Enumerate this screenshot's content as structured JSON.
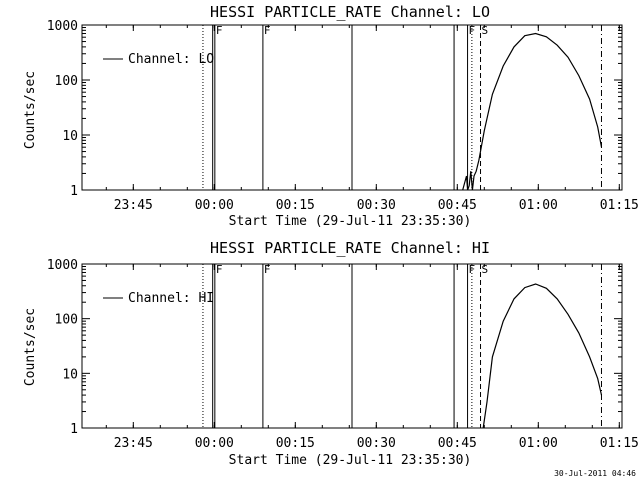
{
  "chart_data": [
    {
      "type": "line",
      "title": "HESSI PARTICLE_RATE Channel: LO",
      "xlabel": "Start Time (29-Jul-11 23:35:30)",
      "ylabel": "Counts/sec",
      "y_scale": "log",
      "ylim": [
        1,
        1000
      ],
      "x_unit": "minutes from 23:35:30",
      "xlim": [
        0,
        100
      ],
      "x_tick_values": [
        9.5,
        24.5,
        39.5,
        54.5,
        69.5,
        84.5,
        99.5
      ],
      "x_tick_labels": [
        "23:45",
        "00:00",
        "00:15",
        "00:30",
        "00:45",
        "01:00",
        "01:15"
      ],
      "y_tick_values": [
        1,
        10,
        100,
        1000
      ],
      "y_tick_labels": [
        "1",
        "10",
        "100",
        "1000"
      ],
      "legend": {
        "entries": [
          "Channel: LO"
        ],
        "placement": "top-left"
      },
      "series": [
        {
          "name": "Channel: LO",
          "x": [
            70.5,
            71.2,
            71.4,
            71.7,
            72.0,
            72.3,
            72.6,
            73.0,
            73.5,
            74.5,
            76.0,
            78.0,
            80.0,
            82.0,
            84.0,
            86.0,
            88.0,
            90.0,
            92.0,
            94.0,
            95.5,
            96.2
          ],
          "y": [
            1,
            1.8,
            1,
            1.2,
            2.2,
            1,
            1.8,
            2.2,
            3.5,
            12,
            55,
            180,
            400,
            640,
            700,
            610,
            430,
            260,
            120,
            45,
            14,
            6
          ]
        }
      ],
      "vertical_markers": [
        {
          "x": 22.4,
          "style": "dotted",
          "label": ""
        },
        {
          "x": 24.2,
          "style": "solid",
          "label": ""
        },
        {
          "x": 24.6,
          "style": "solid",
          "label": "F"
        },
        {
          "x": 33.5,
          "style": "solid",
          "label": "F"
        },
        {
          "x": 50.0,
          "style": "solid",
          "label": ""
        },
        {
          "x": 68.9,
          "style": "solid",
          "label": ""
        },
        {
          "x": 71.4,
          "style": "solid",
          "label": "F"
        },
        {
          "x": 72.2,
          "style": "dotted",
          "label": ""
        },
        {
          "x": 73.8,
          "style": "dashed",
          "label": "S"
        },
        {
          "x": 96.2,
          "style": "dashdot",
          "label": ""
        }
      ]
    },
    {
      "type": "line",
      "title": "HESSI PARTICLE_RATE Channel: HI",
      "xlabel": "Start Time (29-Jul-11 23:35:30)",
      "ylabel": "Counts/sec",
      "y_scale": "log",
      "ylim": [
        1,
        1000
      ],
      "x_unit": "minutes from 23:35:30",
      "xlim": [
        0,
        100
      ],
      "x_tick_values": [
        9.5,
        24.5,
        39.5,
        54.5,
        69.5,
        84.5,
        99.5
      ],
      "x_tick_labels": [
        "23:45",
        "00:00",
        "00:15",
        "00:30",
        "00:45",
        "01:00",
        "01:15"
      ],
      "y_tick_values": [
        1,
        10,
        100,
        1000
      ],
      "y_tick_labels": [
        "1",
        "10",
        "100",
        "1000"
      ],
      "legend": {
        "entries": [
          "Channel: HI"
        ],
        "placement": "top-left"
      },
      "series": [
        {
          "name": "Channel: HI",
          "x": [
            74.3,
            75.0,
            76.0,
            78.0,
            80.0,
            82.0,
            84.0,
            86.0,
            88.0,
            90.0,
            92.0,
            94.0,
            95.5,
            96.2
          ],
          "y": [
            1,
            3,
            20,
            90,
            230,
            370,
            430,
            360,
            230,
            120,
            55,
            20,
            8,
            4
          ]
        }
      ],
      "vertical_markers": [
        {
          "x": 22.4,
          "style": "dotted",
          "label": ""
        },
        {
          "x": 24.2,
          "style": "solid",
          "label": ""
        },
        {
          "x": 24.6,
          "style": "solid",
          "label": "F"
        },
        {
          "x": 33.5,
          "style": "solid",
          "label": "F"
        },
        {
          "x": 50.0,
          "style": "solid",
          "label": ""
        },
        {
          "x": 68.9,
          "style": "solid",
          "label": ""
        },
        {
          "x": 71.4,
          "style": "solid",
          "label": "F"
        },
        {
          "x": 72.2,
          "style": "dotted",
          "label": ""
        },
        {
          "x": 73.8,
          "style": "dashed",
          "label": "S"
        },
        {
          "x": 96.2,
          "style": "dashdot",
          "label": ""
        }
      ]
    }
  ],
  "timestamp": "30-Jul-2011 04:46"
}
